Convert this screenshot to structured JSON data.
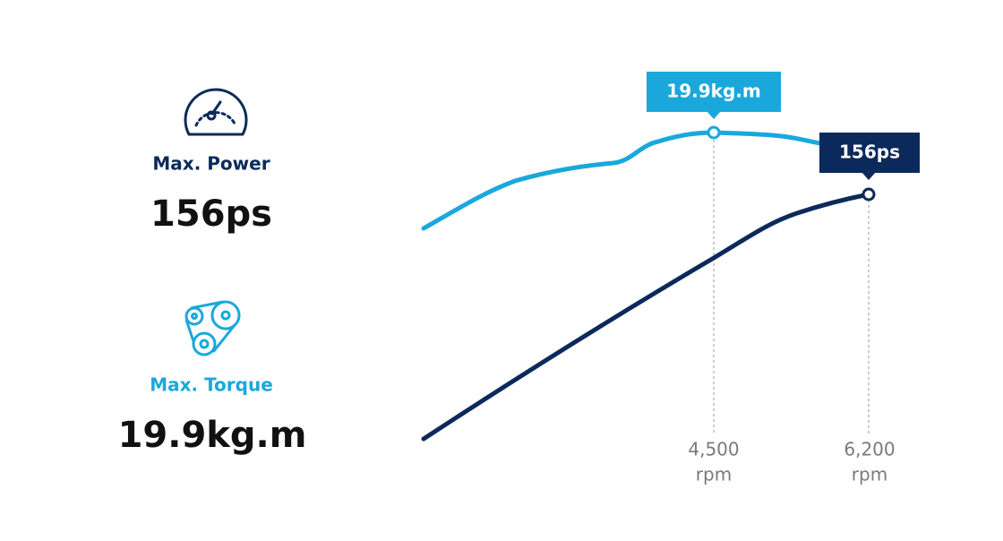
{
  "specs": [
    {
      "label": "Max. Power",
      "value": "156ps"
    },
    {
      "label": "Max. Torque",
      "value": "19.9kg.m"
    }
  ],
  "graph": {
    "callouts": [
      "19.9kg.m",
      "156ps"
    ],
    "markers": [
      {
        "value": "4,500",
        "unit": "rpm"
      },
      {
        "value": "6,200",
        "unit": "rpm"
      }
    ]
  }
}
